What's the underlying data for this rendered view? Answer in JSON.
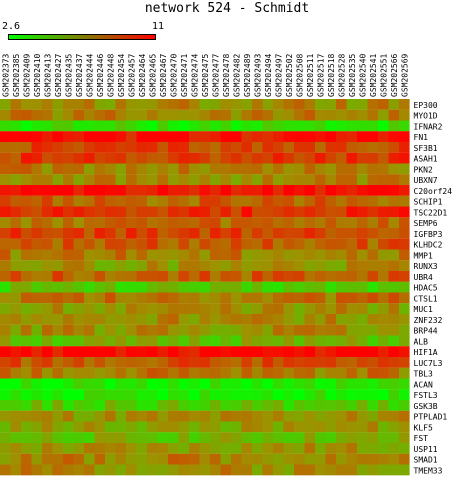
{
  "chart_data": {
    "type": "heatmap",
    "title": "network 524 - Schmidt",
    "legend": {
      "min": "2.6",
      "max": "11",
      "min_color": "#00ff00",
      "max_color": "#ff0000"
    },
    "value_range": [
      2.6,
      11
    ],
    "columns": [
      "GSM202373",
      "GSM202385",
      "GSM202409",
      "GSM202410",
      "GSM202413",
      "GSM202427",
      "GSM202435",
      "GSM202437",
      "GSM202444",
      "GSM202446",
      "GSM202448",
      "GSM202454",
      "GSM202457",
      "GSM202464",
      "GSM202465",
      "GSM202467",
      "GSM202470",
      "GSM202471",
      "GSM202474",
      "GSM202475",
      "GSM202477",
      "GSM202478",
      "GSM202482",
      "GSM202489",
      "GSM202493",
      "GSM202494",
      "GSM202497",
      "GSM202502",
      "GSM202508",
      "GSM202511",
      "GSM202517",
      "GSM202518",
      "GSM202528",
      "GSM202535",
      "GSM202540",
      "GSM202541",
      "GSM202551",
      "GSM202566",
      "GSM202569"
    ],
    "rows": [
      "EP300",
      "MYO1D",
      "IFNAR2",
      "FN1",
      "SF3B1",
      "ASAH1",
      "PKN2",
      "UBXN7",
      "C20orf24",
      "SCHIP1",
      "TSC22D1",
      "SEMP6",
      "IGFBP3",
      "KLHDC2",
      "MMP1",
      "RUNX3",
      "UBR4",
      "HDAC5",
      "CTSL1",
      "MUC1",
      "ZNF232",
      "BRP44",
      "ALB",
      "HIF1A",
      "LUC7L3",
      "TBL3",
      "ACAN",
      "FSTL3",
      "GSK3B",
      "PTPLAD1",
      "KLF5",
      "FST",
      "USP11",
      "SMAD1",
      "TMEM33"
    ],
    "row_profiles": [
      7.0,
      7.2,
      3.8,
      10.5,
      8.9,
      9.3,
      7.4,
      7.0,
      10.8,
      8.1,
      9.7,
      7.8,
      9.0,
      8.4,
      7.4,
      6.6,
      8.3,
      4.8,
      7.7,
      6.7,
      6.9,
      6.8,
      5.5,
      10.8,
      8.6,
      7.5,
      3.3,
      3.2,
      4.8,
      6.6,
      6.3,
      5.4,
      6.5,
      7.3,
      7.0
    ],
    "notes": "Cell values estimated from colour (green = 2.6, red = 11); row_profiles give each gene's typical expression, individual cells vary around it."
  }
}
